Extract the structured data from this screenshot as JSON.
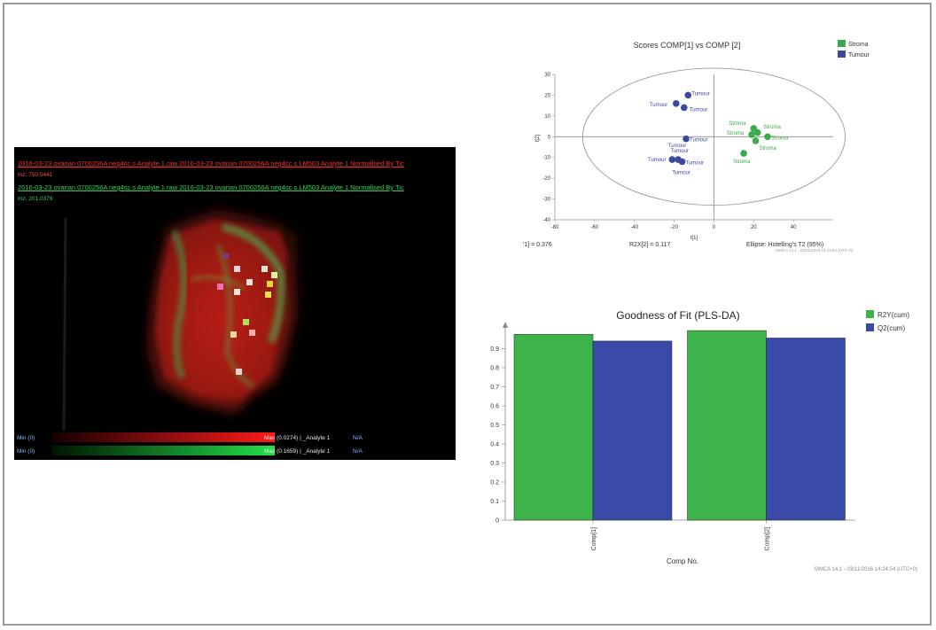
{
  "imaging_panel": {
    "red_channel_title": "2016-03-23 ovarian 0700256A neg4sc s Analyte 1.raw 2016-03-23 ovarian 0700256A neg4sc s LM503 Analyte 1  Normalised By Tic",
    "red_mz": "mz: 750.5441",
    "green_channel_title": "2016-03-23 ovarian 0700256A neg4sc s Analyte 1.raw 2016-03-23 ovarian 0700256A neg4sc s LM503 Analyte 1  Normalised By Tic",
    "green_mz": "mz: 201.0379",
    "red_min": "Min (0)",
    "red_max": "Max (0.0274) | _Analyte 1",
    "red_na": "N/A",
    "green_min": "Min (0)",
    "green_max": "Max (0.1659) | _Analyte 1",
    "green_na": "N/A",
    "colors": {
      "red": "#ff2a2a",
      "green": "#2fd35a",
      "blue_text": "#8fb8ff"
    }
  },
  "chart_data": [
    {
      "type": "scatter",
      "title": "Scores COMP[1] vs COMP [2]",
      "xlabel": "t[1]",
      "ylabel": "t[2]",
      "xlim": [
        -80,
        60
      ],
      "ylim": [
        -40,
        30
      ],
      "xticks": [
        -80,
        -60,
        -40,
        -20,
        0,
        20,
        40
      ],
      "yticks": [
        30,
        20,
        10,
        0,
        -10,
        -20,
        -30,
        -40
      ],
      "legend": [
        "Stroma",
        "Tumour"
      ],
      "colors": {
        "Stroma": "#3aaa4a",
        "Tumour": "#3a48a0"
      },
      "series": [
        {
          "name": "Stroma",
          "points": [
            {
              "x": 20,
              "y": 4,
              "label": "Stroma"
            },
            {
              "x": 22,
              "y": 2,
              "label": ""
            },
            {
              "x": 19,
              "y": 1,
              "label": "Stroma"
            },
            {
              "x": 27,
              "y": 0,
              "label": "Stroma"
            },
            {
              "x": 21,
              "y": -2,
              "label": "Stroma"
            },
            {
              "x": 15,
              "y": -8,
              "label": "Stroma"
            }
          ]
        },
        {
          "name": "Tumour",
          "points": [
            {
              "x": -13,
              "y": 20,
              "label": "Tumour"
            },
            {
              "x": -19,
              "y": 16,
              "label": "Tumour"
            },
            {
              "x": -15,
              "y": 14,
              "label": "Tumour"
            },
            {
              "x": -14,
              "y": -1,
              "label": "Tumour"
            },
            {
              "x": -21,
              "y": -11,
              "label": "Tumour"
            },
            {
              "x": -18,
              "y": -11,
              "label": "Tumour"
            },
            {
              "x": -16,
              "y": -12,
              "label": "Tumour"
            }
          ]
        }
      ],
      "extra_labels": [
        "Stroma",
        "Tumour",
        "Tumour"
      ],
      "ellipse": {
        "cx": 0,
        "cy": 0,
        "rx": 66,
        "ry": 33
      },
      "footer": {
        "r2x1": "'1] = 0.376",
        "r2x2": "R2X[2] = 0.117",
        "ellipse": "Ellipse: Hotelling's T2 (95%)",
        "simca": "SIMCA 14.1 - 03/11/2016 14:24:54 (UTC+0)"
      }
    },
    {
      "type": "bar",
      "title": "Goodness of Fit (PLS-DA)",
      "xlabel": "Comp No.",
      "ylabel": "",
      "categories": [
        "Comp[1]",
        "Comp[2]"
      ],
      "ylim": [
        0,
        1
      ],
      "yticks": [
        0,
        0.1,
        0.2,
        0.3,
        0.4,
        0.5,
        0.6,
        0.7,
        0.8,
        0.9
      ],
      "series": [
        {
          "name": "R2Y(cum)",
          "color": "#3cb449",
          "values": [
            0.975,
            0.995
          ]
        },
        {
          "name": "Q2(cum)",
          "color": "#3a4aa8",
          "values": [
            0.94,
            0.956
          ]
        }
      ],
      "footer": "SIMCA 14.1 - 03/11/2016 14:24:54 (UTC+0)"
    }
  ]
}
